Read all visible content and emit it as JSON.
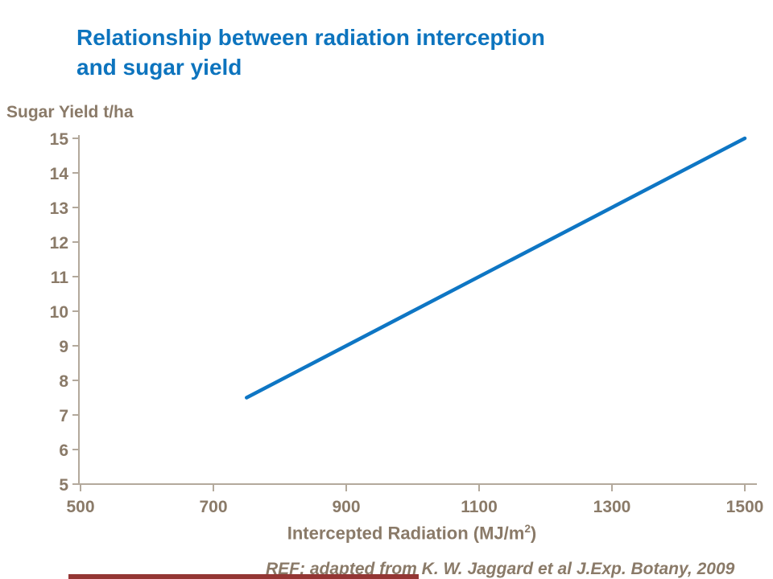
{
  "slide": {
    "title": {
      "lines": [
        "Relationship between radiation interception",
        "and sugar yield"
      ]
    },
    "ref_text": "REF: adapted from K. W. Jaggard et al J.Exp. Botany, 2009",
    "colors": {
      "title_blue": "#0d74be",
      "axis_text": "#8a7a68",
      "axis_line": "#b3a99c",
      "line_blue": "#0e76c4",
      "footer_bar": "#943634"
    }
  },
  "chart_data": {
    "type": "line",
    "title": "Relationship between radiation interception and sugar yield",
    "ylabel": "Sugar Yield t/ha",
    "xlabel": "Intercepted Radiation (MJ/m2)",
    "xlabel_parts": {
      "main": "Intercepted Radiation (MJ/m",
      "sup": "2",
      "close": ")"
    },
    "xlim": [
      500,
      1500
    ],
    "ylim": [
      5,
      15
    ],
    "x_ticks": [
      500,
      700,
      900,
      1100,
      1300,
      1500
    ],
    "y_ticks": [
      5,
      6,
      7,
      8,
      9,
      10,
      11,
      12,
      13,
      14,
      15
    ],
    "grid": false,
    "legend": null,
    "series": [
      {
        "name": "sugar-yield-vs-intercepted-radiation",
        "points": [
          [
            750,
            7.5
          ],
          [
            1500,
            15
          ]
        ]
      }
    ]
  }
}
